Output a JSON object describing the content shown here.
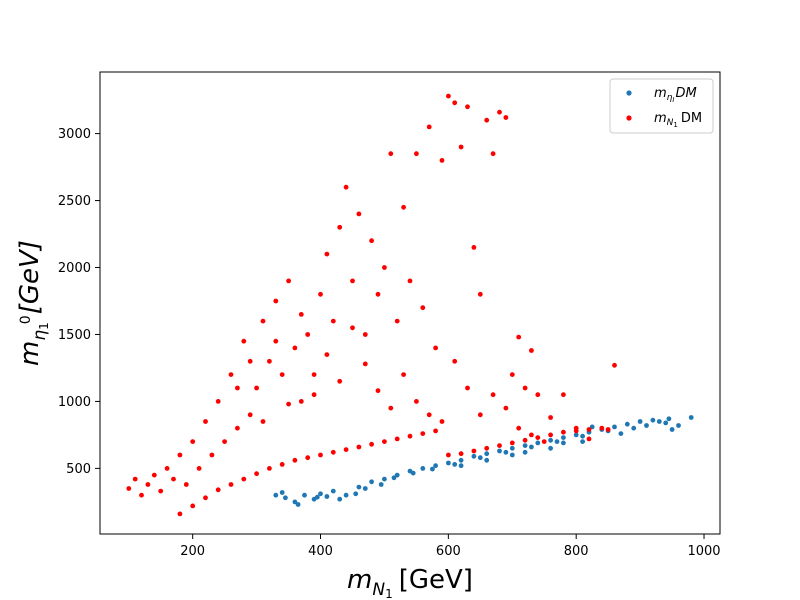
{
  "chart_data": {
    "type": "scatter",
    "title": "",
    "xlabel": {
      "base": "m",
      "sub": "N",
      "subsub": "1",
      "units": "[GeV]"
    },
    "ylabel": {
      "base": "m",
      "sub": "η",
      "subsub": "1",
      "sup": "0",
      "units": "[GeV]"
    },
    "xlim": [
      55,
      1025
    ],
    "ylim": [
      10,
      3460
    ],
    "xticks": [
      200,
      400,
      600,
      800,
      1000
    ],
    "yticks": [
      500,
      1000,
      1500,
      2000,
      2500,
      3000
    ],
    "grid": false,
    "legend_position": "top-right",
    "series": [
      {
        "name": "m_{η_I} DM",
        "legend": {
          "base": "m",
          "sub": "η",
          "subsub": "I",
          "suffix": "DM"
        },
        "color": "#1f77b4",
        "marker": "circle",
        "points": [
          [
            330,
            300
          ],
          [
            345,
            280
          ],
          [
            360,
            250
          ],
          [
            375,
            300
          ],
          [
            390,
            270
          ],
          [
            400,
            310
          ],
          [
            410,
            290
          ],
          [
            420,
            330
          ],
          [
            440,
            300
          ],
          [
            460,
            360
          ],
          [
            480,
            400
          ],
          [
            500,
            420
          ],
          [
            520,
            450
          ],
          [
            540,
            480
          ],
          [
            560,
            500
          ],
          [
            580,
            520
          ],
          [
            600,
            540
          ],
          [
            620,
            560
          ],
          [
            640,
            590
          ],
          [
            660,
            610
          ],
          [
            680,
            630
          ],
          [
            700,
            650
          ],
          [
            720,
            670
          ],
          [
            740,
            690
          ],
          [
            760,
            710
          ],
          [
            780,
            730
          ],
          [
            800,
            750
          ],
          [
            820,
            770
          ],
          [
            840,
            790
          ],
          [
            860,
            810
          ],
          [
            880,
            830
          ],
          [
            900,
            850
          ],
          [
            920,
            860
          ],
          [
            940,
            840
          ],
          [
            960,
            820
          ],
          [
            980,
            880
          ],
          [
            340,
            320
          ],
          [
            365,
            230
          ],
          [
            395,
            285
          ],
          [
            430,
            270
          ],
          [
            455,
            310
          ],
          [
            470,
            350
          ],
          [
            495,
            380
          ],
          [
            515,
            430
          ],
          [
            545,
            465
          ],
          [
            575,
            495
          ],
          [
            610,
            530
          ],
          [
            650,
            580
          ],
          [
            690,
            620
          ],
          [
            730,
            660
          ],
          [
            770,
            700
          ],
          [
            810,
            740
          ],
          [
            850,
            780
          ],
          [
            890,
            800
          ],
          [
            930,
            850
          ],
          [
            950,
            790
          ],
          [
            620,
            520
          ],
          [
            700,
            600
          ],
          [
            760,
            650
          ],
          [
            810,
            700
          ],
          [
            870,
            760
          ],
          [
            910,
            820
          ],
          [
            945,
            870
          ],
          [
            825,
            810
          ],
          [
            780,
            690
          ],
          [
            720,
            620
          ],
          [
            660,
            560
          ]
        ]
      },
      {
        "name": "m_{N_1} DM",
        "legend": {
          "base": "m",
          "sub": "N",
          "subsub": "1",
          "suffix": "DM"
        },
        "color": "#ff0000",
        "marker": "circle",
        "points": [
          [
            100,
            350
          ],
          [
            110,
            420
          ],
          [
            120,
            300
          ],
          [
            130,
            380
          ],
          [
            140,
            450
          ],
          [
            150,
            330
          ],
          [
            160,
            500
          ],
          [
            170,
            420
          ],
          [
            180,
            600
          ],
          [
            190,
            380
          ],
          [
            200,
            700
          ],
          [
            210,
            500
          ],
          [
            220,
            850
          ],
          [
            230,
            600
          ],
          [
            240,
            1000
          ],
          [
            250,
            700
          ],
          [
            260,
            1200
          ],
          [
            270,
            800
          ],
          [
            280,
            1450
          ],
          [
            290,
            900
          ],
          [
            300,
            1100
          ],
          [
            310,
            1600
          ],
          [
            320,
            1300
          ],
          [
            330,
            1750
          ],
          [
            340,
            1200
          ],
          [
            350,
            1900
          ],
          [
            360,
            1400
          ],
          [
            370,
            1000
          ],
          [
            380,
            1500
          ],
          [
            390,
            1200
          ],
          [
            400,
            1800
          ],
          [
            410,
            2100
          ],
          [
            420,
            1600
          ],
          [
            430,
            2300
          ],
          [
            440,
            2600
          ],
          [
            450,
            1900
          ],
          [
            460,
            2400
          ],
          [
            470,
            1500
          ],
          [
            480,
            2200
          ],
          [
            490,
            1800
          ],
          [
            500,
            2000
          ],
          [
            510,
            2850
          ],
          [
            520,
            1600
          ],
          [
            530,
            2450
          ],
          [
            540,
            1900
          ],
          [
            550,
            2850
          ],
          [
            560,
            1700
          ],
          [
            570,
            3050
          ],
          [
            580,
            1400
          ],
          [
            590,
            2800
          ],
          [
            600,
            3280
          ],
          [
            610,
            3230
          ],
          [
            620,
            2900
          ],
          [
            630,
            3200
          ],
          [
            640,
            2150
          ],
          [
            650,
            1800
          ],
          [
            660,
            3100
          ],
          [
            670,
            2850
          ],
          [
            680,
            3160
          ],
          [
            690,
            3120
          ],
          [
            700,
            1200
          ],
          [
            710,
            1480
          ],
          [
            720,
            1100
          ],
          [
            730,
            1380
          ],
          [
            740,
            1050
          ],
          [
            760,
            880
          ],
          [
            780,
            1050
          ],
          [
            800,
            800
          ],
          [
            820,
            720
          ],
          [
            860,
            1270
          ],
          [
            180,
            160
          ],
          [
            200,
            220
          ],
          [
            220,
            280
          ],
          [
            240,
            340
          ],
          [
            260,
            380
          ],
          [
            280,
            420
          ],
          [
            300,
            460
          ],
          [
            320,
            500
          ],
          [
            340,
            530
          ],
          [
            360,
            560
          ],
          [
            380,
            580
          ],
          [
            400,
            600
          ],
          [
            420,
            620
          ],
          [
            440,
            640
          ],
          [
            460,
            660
          ],
          [
            480,
            680
          ],
          [
            500,
            700
          ],
          [
            520,
            720
          ],
          [
            540,
            740
          ],
          [
            560,
            760
          ],
          [
            580,
            780
          ],
          [
            600,
            600
          ],
          [
            620,
            610
          ],
          [
            640,
            630
          ],
          [
            660,
            650
          ],
          [
            680,
            670
          ],
          [
            700,
            690
          ],
          [
            720,
            710
          ],
          [
            740,
            730
          ],
          [
            760,
            750
          ],
          [
            780,
            770
          ],
          [
            800,
            780
          ],
          [
            820,
            790
          ],
          [
            840,
            800
          ],
          [
            850,
            790
          ],
          [
            270,
            1100
          ],
          [
            290,
            1300
          ],
          [
            310,
            850
          ],
          [
            330,
            1450
          ],
          [
            350,
            980
          ],
          [
            370,
            1650
          ],
          [
            390,
            1050
          ],
          [
            410,
            1350
          ],
          [
            430,
            1150
          ],
          [
            450,
            1550
          ],
          [
            470,
            1280
          ],
          [
            490,
            1080
          ],
          [
            510,
            950
          ],
          [
            530,
            1200
          ],
          [
            550,
            1000
          ],
          [
            570,
            900
          ],
          [
            590,
            850
          ],
          [
            610,
            1300
          ],
          [
            630,
            1100
          ],
          [
            650,
            900
          ],
          [
            670,
            1050
          ],
          [
            690,
            950
          ],
          [
            710,
            800
          ],
          [
            730,
            750
          ],
          [
            750,
            700
          ]
        ]
      }
    ]
  }
}
